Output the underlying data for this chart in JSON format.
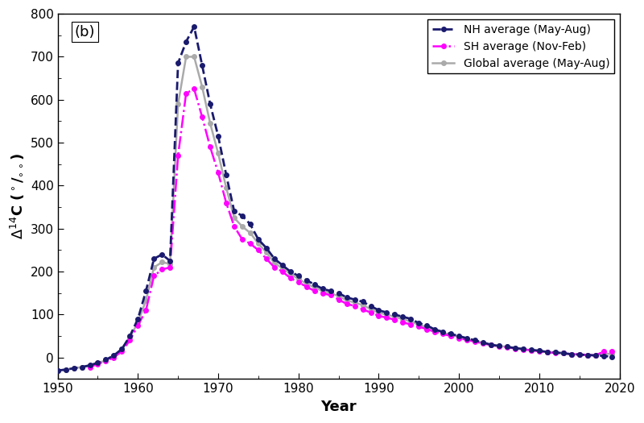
{
  "title": "(b)",
  "xlabel": "Year",
  "ylabel": "Δ14C (°/₀₀)",
  "xlim": [
    1950,
    2020
  ],
  "ylim": [
    -50,
    800
  ],
  "yticks": [
    0,
    100,
    200,
    300,
    400,
    500,
    600,
    700,
    800
  ],
  "xticks": [
    1950,
    1960,
    1970,
    1980,
    1990,
    2000,
    2010,
    2020
  ],
  "nh_color": "#1a1a6e",
  "sh_color": "#ff00ff",
  "global_color": "#aaaaaa",
  "nh_years": [
    1950,
    1951,
    1952,
    1953,
    1954,
    1955,
    1956,
    1957,
    1958,
    1959,
    1960,
    1961,
    1962,
    1963,
    1964,
    1965,
    1966,
    1967,
    1968,
    1969,
    1970,
    1971,
    1972,
    1973,
    1974,
    1975,
    1976,
    1977,
    1978,
    1979,
    1980,
    1981,
    1982,
    1983,
    1984,
    1985,
    1986,
    1987,
    1988,
    1989,
    1990,
    1991,
    1992,
    1993,
    1994,
    1995,
    1996,
    1997,
    1998,
    1999,
    2000,
    2001,
    2002,
    2003,
    2004,
    2005,
    2006,
    2007,
    2008,
    2009,
    2010,
    2011,
    2012,
    2013,
    2014,
    2015,
    2016,
    2017,
    2018,
    2019
  ],
  "nh_values": [
    -30,
    -28,
    -25,
    -22,
    -18,
    -12,
    -5,
    5,
    20,
    50,
    90,
    155,
    230,
    240,
    225,
    685,
    735,
    770,
    680,
    590,
    515,
    425,
    340,
    330,
    310,
    275,
    255,
    230,
    215,
    200,
    190,
    180,
    170,
    160,
    155,
    150,
    140,
    135,
    130,
    120,
    110,
    105,
    100,
    95,
    90,
    80,
    75,
    65,
    60,
    55,
    50,
    45,
    40,
    35,
    30,
    27,
    25,
    22,
    20,
    18,
    16,
    13,
    12,
    10,
    8,
    7,
    6,
    5,
    4,
    2
  ],
  "sh_years": [
    1954,
    1955,
    1956,
    1957,
    1958,
    1959,
    1960,
    1961,
    1962,
    1963,
    1964,
    1965,
    1966,
    1967,
    1968,
    1969,
    1970,
    1971,
    1972,
    1973,
    1974,
    1975,
    1976,
    1977,
    1978,
    1979,
    1980,
    1981,
    1982,
    1983,
    1984,
    1985,
    1986,
    1987,
    1988,
    1989,
    1990,
    1991,
    1992,
    1993,
    1994,
    1995,
    1996,
    1997,
    1998,
    1999,
    2000,
    2001,
    2002,
    2003,
    2004,
    2005,
    2006,
    2007,
    2008,
    2009,
    2010,
    2011,
    2012,
    2013,
    2014,
    2015,
    2016,
    2017,
    2018,
    2019
  ],
  "sh_values": [
    -22,
    -15,
    -8,
    0,
    15,
    40,
    75,
    110,
    190,
    205,
    210,
    470,
    615,
    625,
    560,
    490,
    430,
    360,
    305,
    275,
    265,
    250,
    230,
    210,
    200,
    185,
    175,
    165,
    155,
    150,
    145,
    135,
    125,
    120,
    112,
    105,
    97,
    93,
    88,
    82,
    77,
    72,
    66,
    60,
    55,
    50,
    45,
    41,
    37,
    33,
    29,
    26,
    24,
    21,
    19,
    17,
    15,
    12,
    11,
    10,
    8,
    7,
    6,
    5,
    14,
    15
  ],
  "global_years": [
    1950,
    1951,
    1952,
    1953,
    1954,
    1955,
    1956,
    1957,
    1958,
    1959,
    1960,
    1961,
    1962,
    1963,
    1964,
    1965,
    1966,
    1967,
    1968,
    1969,
    1970,
    1971,
    1972,
    1973,
    1974,
    1975,
    1976,
    1977,
    1978,
    1979,
    1980,
    1981,
    1982,
    1983,
    1984,
    1985,
    1986,
    1987,
    1988,
    1989,
    1990,
    1991,
    1992,
    1993,
    1994,
    1995,
    1996,
    1997,
    1998,
    1999,
    2000,
    2001,
    2002,
    2003,
    2004,
    2005,
    2006,
    2007,
    2008,
    2009,
    2010,
    2011,
    2012,
    2013,
    2014,
    2015,
    2016,
    2017,
    2018,
    2019
  ],
  "global_values": [
    -30,
    -28,
    -25,
    -22,
    -20,
    -13,
    -6,
    3,
    18,
    47,
    82,
    133,
    210,
    222,
    218,
    590,
    700,
    700,
    630,
    545,
    475,
    395,
    325,
    305,
    290,
    265,
    245,
    220,
    208,
    194,
    183,
    172,
    163,
    155,
    150,
    143,
    133,
    128,
    122,
    113,
    104,
    100,
    95,
    89,
    84,
    76,
    71,
    63,
    58,
    53,
    48,
    43,
    39,
    34,
    29,
    27,
    25,
    22,
    20,
    17,
    16,
    13,
    12,
    10,
    8,
    7,
    6,
    5,
    9,
    9
  ],
  "background_color": "#ffffff",
  "legend_nh": "NH average (May-Aug)",
  "legend_sh": "SH average (Nov-Feb)",
  "legend_global": "Global average (May-Aug)"
}
